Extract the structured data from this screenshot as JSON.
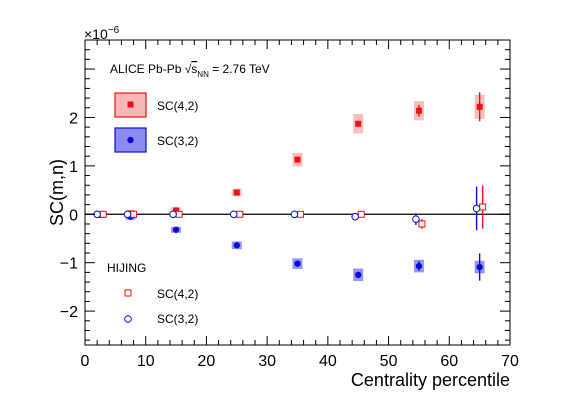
{
  "chart_data": {
    "type": "scatter",
    "title": "",
    "xlabel": "Centrality percentile",
    "ylabel": "SC(m,n)",
    "y_multiplier": "×10",
    "y_multiplier_exponent": "−6",
    "xlim": [
      0,
      70
    ],
    "ylim": [
      -2.7,
      3.6
    ],
    "x_ticks": [
      0,
      10,
      20,
      30,
      40,
      50,
      60,
      70
    ],
    "y_ticks": [
      -2,
      -1,
      0,
      1,
      2
    ],
    "y_tick_labels": [
      "−2",
      "−1",
      "0",
      "1",
      "2"
    ],
    "zero_line": true,
    "grid": false,
    "legend_position": "top-left",
    "system_label": {
      "prefix": "ALICE Pb-Pb ",
      "sqrt": "√",
      "s": "s",
      "subscript": "NN",
      "suffix": " = 2.76 TeV"
    },
    "hijing_label": "HIJING",
    "colors": {
      "sc42": "#ee1111",
      "sc42_box": "#f7b8b8",
      "sc32": "#0b0bd8",
      "sc32_box": "#8c8cf0"
    },
    "series": [
      {
        "name": "SC(4,2)",
        "kind": "data",
        "marker": "filled-square",
        "x": [
          2.5,
          7.5,
          15,
          25,
          35,
          45,
          55,
          65
        ],
        "y": [
          0.0,
          0.02,
          0.08,
          0.45,
          1.13,
          1.87,
          2.14,
          2.22
        ],
        "stat_err": [
          0.01,
          0.01,
          0.02,
          0.03,
          0.05,
          0.08,
          0.12,
          0.3
        ],
        "sys_err": [
          0.03,
          0.04,
          0.06,
          0.08,
          0.14,
          0.2,
          0.2,
          0.25
        ]
      },
      {
        "name": "SC(3,2)",
        "kind": "data",
        "marker": "filled-circle",
        "x": [
          2.5,
          7.5,
          15,
          25,
          35,
          45,
          55,
          65
        ],
        "y": [
          -0.01,
          -0.05,
          -0.32,
          -0.64,
          -1.02,
          -1.25,
          -1.07,
          -1.09
        ],
        "stat_err": [
          0.01,
          0.01,
          0.02,
          0.03,
          0.05,
          0.06,
          0.1,
          0.28
        ],
        "sys_err": [
          0.03,
          0.04,
          0.06,
          0.08,
          0.11,
          0.13,
          0.13,
          0.13
        ]
      },
      {
        "name": "SC(4,2)",
        "kind": "hijing",
        "marker": "open-square",
        "x": [
          3,
          8,
          15.5,
          25.5,
          35.5,
          45.5,
          55.5,
          65.5
        ],
        "y": [
          0.0,
          0.0,
          0.0,
          0.0,
          0.0,
          0.0,
          -0.2,
          0.15
        ],
        "stat_err": [
          0.01,
          0.01,
          0.01,
          0.01,
          0.02,
          0.03,
          0.1,
          0.45
        ]
      },
      {
        "name": "SC(3,2)",
        "kind": "hijing",
        "marker": "open-circle",
        "x": [
          2,
          7,
          14.5,
          24.5,
          34.5,
          44.5,
          54.5,
          64.5
        ],
        "y": [
          0.0,
          0.0,
          0.0,
          0.0,
          0.0,
          -0.05,
          -0.1,
          0.12
        ],
        "stat_err": [
          0.01,
          0.01,
          0.01,
          0.01,
          0.02,
          0.03,
          0.12,
          0.45
        ]
      }
    ]
  }
}
